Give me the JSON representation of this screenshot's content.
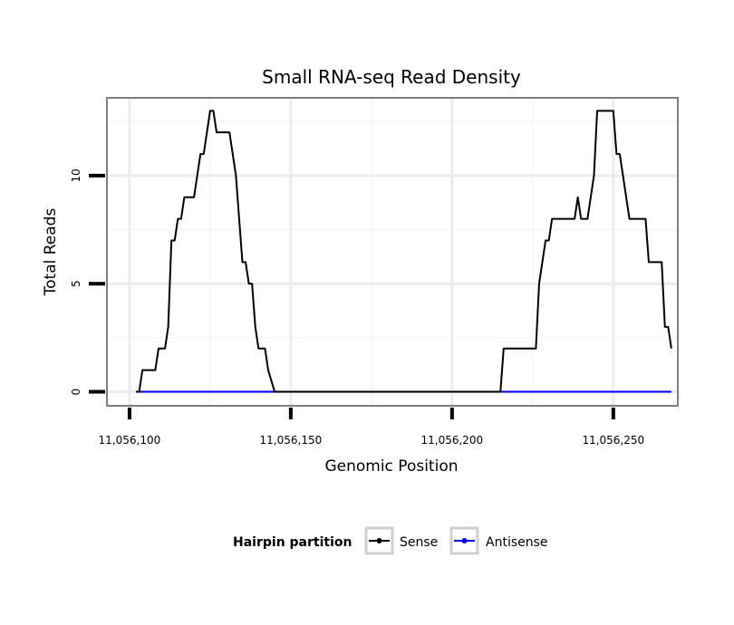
{
  "chart_data": {
    "type": "line",
    "title": "Small RNA-seq Read Density",
    "xlabel": "Genomic Position",
    "ylabel": "Total Reads",
    "xlim": [
      11056093,
      11056270
    ],
    "ylim": [
      -0.65,
      13.6
    ],
    "x_ticks": [
      11056100,
      11056150,
      11056200,
      11056250
    ],
    "x_tick_labels": [
      "11,056,100",
      "11,056,150",
      "11,056,200",
      "11,056,250"
    ],
    "y_ticks": [
      0,
      5,
      10
    ],
    "y_tick_labels": [
      "0",
      "5",
      "10"
    ],
    "grid": true,
    "legend": {
      "title": "Hairpin partition",
      "position": "bottom",
      "entries": [
        "Sense",
        "Antisense"
      ]
    },
    "series": [
      {
        "name": "Sense",
        "color": "#000000",
        "step_x": [
          11056102,
          11056103,
          11056104,
          11056108,
          11056109,
          11056111,
          11056112,
          11056113,
          11056114,
          11056115,
          11056116,
          11056117,
          11056120,
          11056121,
          11056122,
          11056123,
          11056124,
          11056125,
          11056126,
          11056127,
          11056129,
          11056131,
          11056132,
          11056133,
          11056135,
          11056136,
          11056137,
          11056138,
          11056139,
          11056140,
          11056142,
          11056143,
          11056145,
          11056146,
          11056147,
          11056215,
          11056216,
          11056226,
          11056227,
          11056228,
          11056229,
          11056230,
          11056231,
          11056238,
          11056239,
          11056240,
          11056242,
          11056243,
          11056244,
          11056245,
          11056246,
          11056250,
          11056251,
          11056252,
          11056255,
          11056256,
          11056260,
          11056261,
          11056265,
          11056266,
          11056267,
          11056268
        ],
        "step_y": [
          0,
          0,
          1,
          1,
          2,
          2,
          3,
          7,
          7,
          8,
          8,
          9,
          9,
          10,
          11,
          11,
          12,
          13,
          13,
          12,
          12,
          12,
          11,
          10,
          6,
          6,
          5,
          5,
          3,
          2,
          2,
          1,
          0,
          0,
          0,
          0,
          2,
          2,
          5,
          6,
          7,
          7,
          8,
          8,
          9,
          8,
          8,
          9,
          10,
          13,
          13,
          13,
          11,
          11,
          8,
          8,
          8,
          6,
          6,
          3,
          3,
          2
        ]
      },
      {
        "name": "Antisense",
        "color": "#0000ff",
        "step_x": [
          11056102,
          11056268
        ],
        "step_y": [
          0,
          0
        ]
      }
    ]
  }
}
